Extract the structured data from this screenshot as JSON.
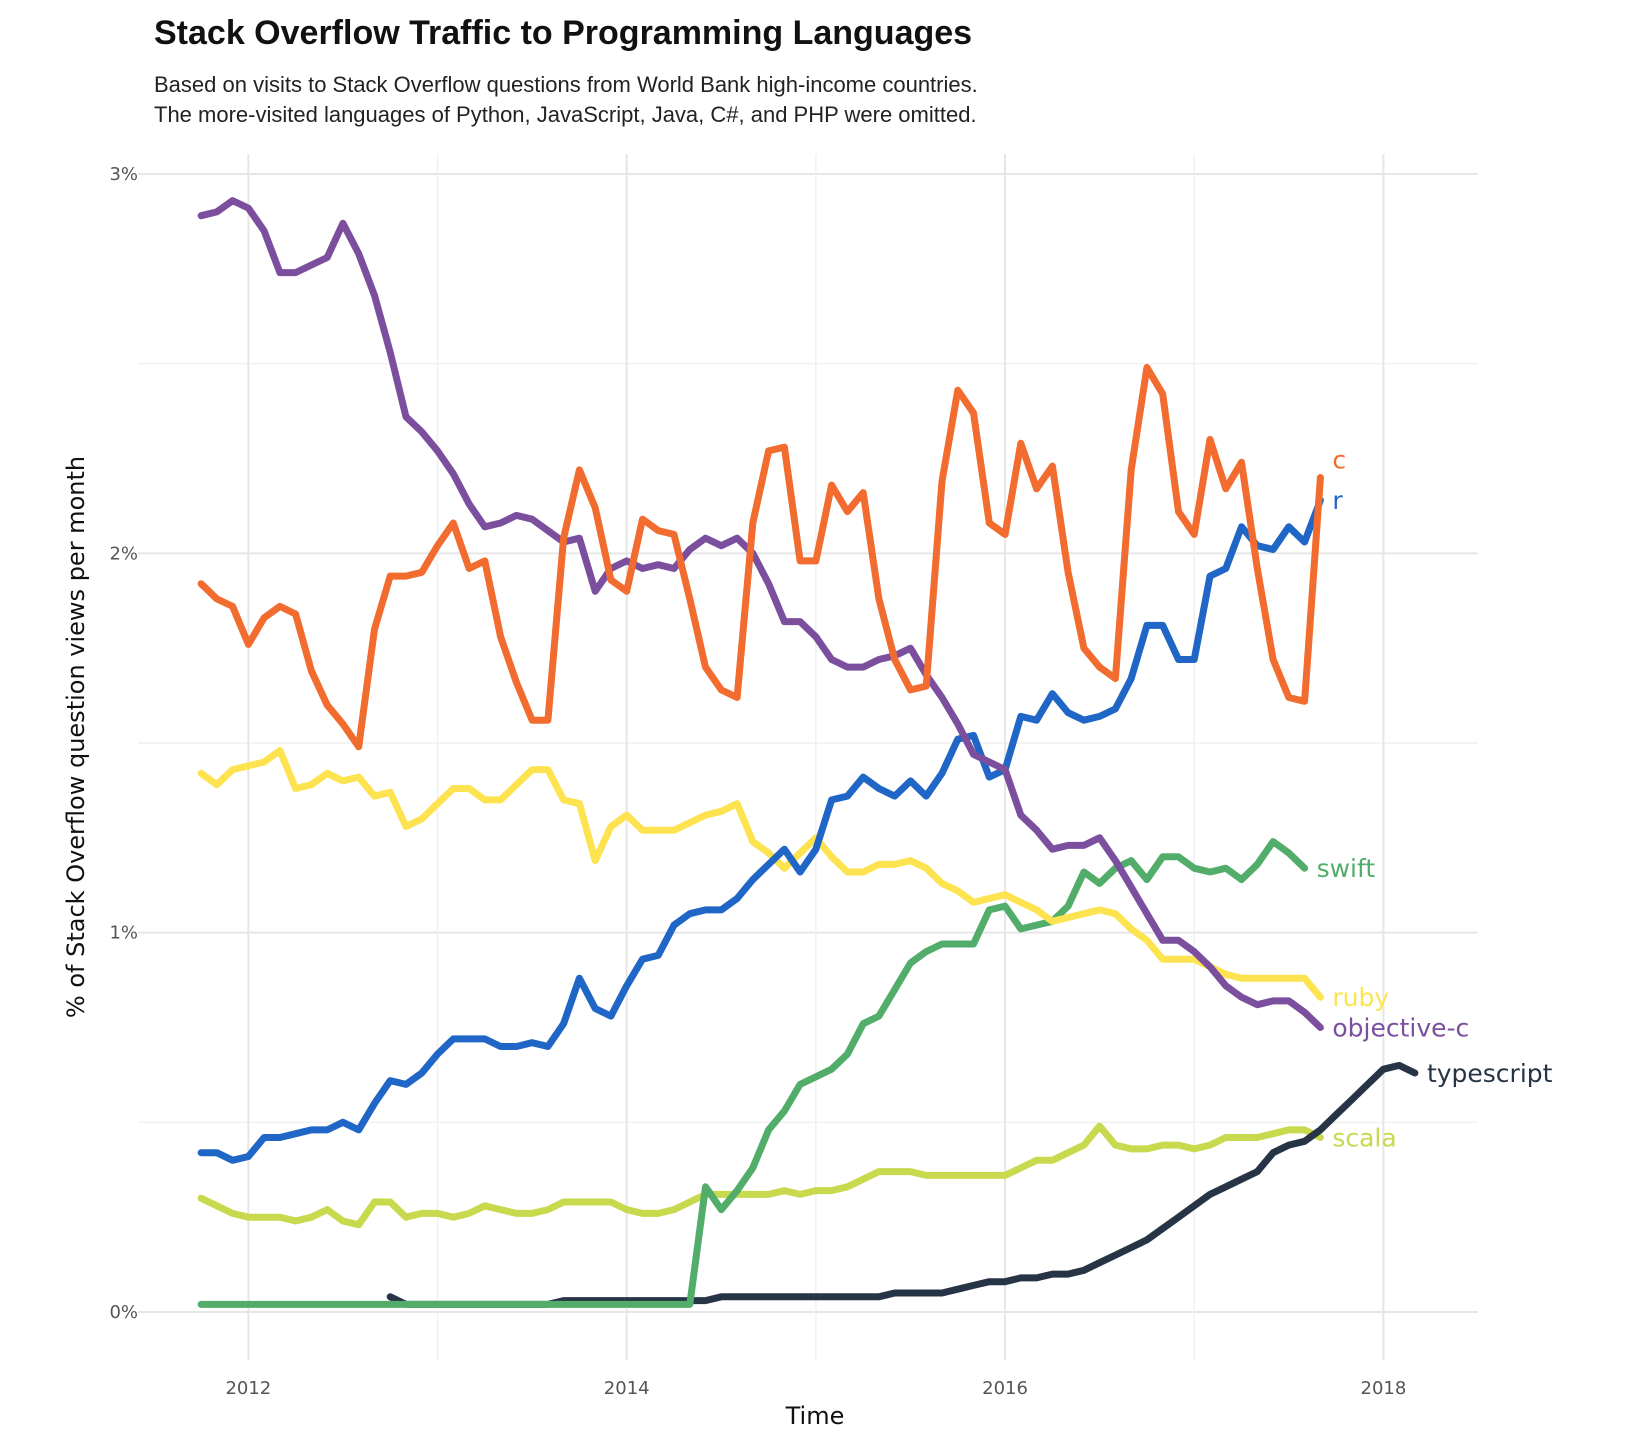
{
  "chart_data": {
    "type": "line",
    "title": "Stack Overflow Traffic to Programming Languages",
    "subtitle_lines": [
      "Based on visits to Stack Overflow questions from World Bank high-income countries.",
      "The more-visited languages of Python, JavaScript, Java, C#, and PHP were omitted."
    ],
    "xlabel": "Time",
    "ylabel": "% of Stack Overflow question views per month",
    "x_ticks": [
      "2012",
      "2014",
      "2016",
      "2018"
    ],
    "y_ticks": [
      "0%",
      "1%",
      "2%",
      "3%"
    ],
    "xlim": [
      "2011-06",
      "2018-07"
    ],
    "ylim": [
      0,
      3
    ],
    "grid": true,
    "legend": "direct labels at line ends",
    "series": [
      {
        "name": "c",
        "color": "#F26B2F",
        "start": "2011-10",
        "values": [
          1.92,
          1.88,
          1.86,
          1.76,
          1.83,
          1.86,
          1.84,
          1.69,
          1.6,
          1.55,
          1.49,
          1.8,
          1.94,
          1.94,
          1.95,
          2.02,
          2.08,
          1.96,
          1.98,
          1.78,
          1.66,
          1.56,
          1.56,
          2.04,
          2.22,
          2.12,
          1.93,
          1.9,
          2.09,
          2.06,
          2.05,
          1.88,
          1.7,
          1.64,
          1.62,
          2.08,
          2.27,
          2.28,
          1.98,
          1.98,
          2.18,
          2.11,
          2.16,
          1.88,
          1.72,
          1.64,
          1.65,
          2.19,
          2.43,
          2.37,
          2.08,
          2.05,
          2.29,
          2.17,
          2.23,
          1.95,
          1.75,
          1.7,
          1.67,
          2.22,
          2.49,
          2.42,
          2.11,
          2.05,
          2.3,
          2.17,
          2.24,
          1.96,
          1.72,
          1.62,
          1.61,
          2.2
        ]
      },
      {
        "name": "r",
        "color": "#1F66C6",
        "start": "2011-10",
        "values": [
          0.42,
          0.42,
          0.4,
          0.41,
          0.46,
          0.46,
          0.47,
          0.48,
          0.48,
          0.5,
          0.48,
          0.55,
          0.61,
          0.6,
          0.63,
          0.68,
          0.72,
          0.72,
          0.72,
          0.7,
          0.7,
          0.71,
          0.7,
          0.76,
          0.88,
          0.8,
          0.78,
          0.86,
          0.93,
          0.94,
          1.02,
          1.05,
          1.06,
          1.06,
          1.09,
          1.14,
          1.18,
          1.22,
          1.16,
          1.22,
          1.35,
          1.36,
          1.41,
          1.38,
          1.36,
          1.4,
          1.36,
          1.42,
          1.51,
          1.52,
          1.41,
          1.43,
          1.57,
          1.56,
          1.63,
          1.58,
          1.56,
          1.57,
          1.59,
          1.67,
          1.81,
          1.81,
          1.72,
          1.72,
          1.94,
          1.96,
          2.07,
          2.02,
          2.01,
          2.07,
          2.03,
          2.14
        ]
      },
      {
        "name": "objective-c",
        "color": "#7B4F9E",
        "start": "2011-10",
        "values": [
          2.89,
          2.9,
          2.93,
          2.91,
          2.85,
          2.74,
          2.74,
          2.76,
          2.78,
          2.87,
          2.79,
          2.68,
          2.53,
          2.36,
          2.32,
          2.27,
          2.21,
          2.13,
          2.07,
          2.08,
          2.1,
          2.09,
          2.06,
          2.03,
          2.04,
          1.9,
          1.96,
          1.98,
          1.96,
          1.97,
          1.96,
          2.01,
          2.04,
          2.02,
          2.04,
          2.0,
          1.92,
          1.82,
          1.82,
          1.78,
          1.72,
          1.7,
          1.7,
          1.72,
          1.73,
          1.75,
          1.68,
          1.62,
          1.55,
          1.47,
          1.45,
          1.43,
          1.31,
          1.27,
          1.22,
          1.23,
          1.23,
          1.25,
          1.19,
          1.12,
          1.05,
          0.98,
          0.98,
          0.95,
          0.91,
          0.86,
          0.83,
          0.81,
          0.82,
          0.82,
          0.79,
          0.75
        ]
      },
      {
        "name": "swift",
        "color": "#52AD6B",
        "start": "2011-10",
        "values": [
          0.02,
          0.02,
          0.02,
          0.02,
          0.02,
          0.02,
          0.02,
          0.02,
          0.02,
          0.02,
          0.02,
          0.02,
          0.02,
          0.02,
          0.02,
          0.02,
          0.02,
          0.02,
          0.02,
          0.02,
          0.02,
          0.02,
          0.02,
          0.02,
          0.02,
          0.02,
          0.02,
          0.02,
          0.02,
          0.02,
          0.02,
          0.02,
          0.33,
          0.27,
          0.32,
          0.38,
          0.48,
          0.53,
          0.6,
          0.62,
          0.64,
          0.68,
          0.76,
          0.78,
          0.85,
          0.92,
          0.95,
          0.97,
          0.97,
          0.97,
          1.06,
          1.07,
          1.01,
          1.02,
          1.03,
          1.07,
          1.16,
          1.13,
          1.17,
          1.19,
          1.14,
          1.2,
          1.2,
          1.17,
          1.16,
          1.17,
          1.14,
          1.18,
          1.24,
          1.21,
          1.17
        ]
      },
      {
        "name": "ruby",
        "color": "#FCE34F",
        "start": "2011-10",
        "values": [
          1.42,
          1.39,
          1.43,
          1.44,
          1.45,
          1.48,
          1.38,
          1.39,
          1.42,
          1.4,
          1.41,
          1.36,
          1.37,
          1.28,
          1.3,
          1.34,
          1.38,
          1.38,
          1.35,
          1.35,
          1.39,
          1.43,
          1.43,
          1.35,
          1.34,
          1.19,
          1.28,
          1.31,
          1.27,
          1.27,
          1.27,
          1.29,
          1.31,
          1.32,
          1.34,
          1.24,
          1.21,
          1.17,
          1.21,
          1.25,
          1.2,
          1.16,
          1.16,
          1.18,
          1.18,
          1.19,
          1.17,
          1.13,
          1.11,
          1.08,
          1.09,
          1.1,
          1.08,
          1.06,
          1.03,
          1.04,
          1.05,
          1.06,
          1.05,
          1.01,
          0.98,
          0.93,
          0.93,
          0.93,
          0.91,
          0.89,
          0.88,
          0.88,
          0.88,
          0.88,
          0.88,
          0.83
        ]
      },
      {
        "name": "typescript",
        "color": "#263445",
        "start": "2012-10",
        "values": [
          0.04,
          0.02,
          0.02,
          0.02,
          0.02,
          0.02,
          0.02,
          0.02,
          0.02,
          0.02,
          0.02,
          0.03,
          0.03,
          0.03,
          0.03,
          0.03,
          0.03,
          0.03,
          0.03,
          0.03,
          0.03,
          0.04,
          0.04,
          0.04,
          0.04,
          0.04,
          0.04,
          0.04,
          0.04,
          0.04,
          0.04,
          0.04,
          0.05,
          0.05,
          0.05,
          0.05,
          0.06,
          0.07,
          0.08,
          0.08,
          0.09,
          0.09,
          0.1,
          0.1,
          0.11,
          0.13,
          0.15,
          0.17,
          0.19,
          0.22,
          0.25,
          0.28,
          0.31,
          0.33,
          0.35,
          0.37,
          0.42,
          0.44,
          0.45,
          0.48,
          0.52,
          0.56,
          0.6,
          0.64,
          0.65,
          0.63
        ]
      },
      {
        "name": "scala",
        "color": "#C8D94E",
        "start": "2011-10",
        "values": [
          0.3,
          0.28,
          0.26,
          0.25,
          0.25,
          0.25,
          0.24,
          0.25,
          0.27,
          0.24,
          0.23,
          0.29,
          0.29,
          0.25,
          0.26,
          0.26,
          0.25,
          0.26,
          0.28,
          0.27,
          0.26,
          0.26,
          0.27,
          0.29,
          0.29,
          0.29,
          0.29,
          0.27,
          0.26,
          0.26,
          0.27,
          0.29,
          0.31,
          0.31,
          0.31,
          0.31,
          0.31,
          0.32,
          0.31,
          0.32,
          0.32,
          0.33,
          0.35,
          0.37,
          0.37,
          0.37,
          0.36,
          0.36,
          0.36,
          0.36,
          0.36,
          0.36,
          0.38,
          0.4,
          0.4,
          0.42,
          0.44,
          0.49,
          0.44,
          0.43,
          0.43,
          0.44,
          0.44,
          0.43,
          0.44,
          0.46,
          0.46,
          0.46,
          0.47,
          0.48,
          0.48,
          0.46
        ]
      }
    ]
  }
}
